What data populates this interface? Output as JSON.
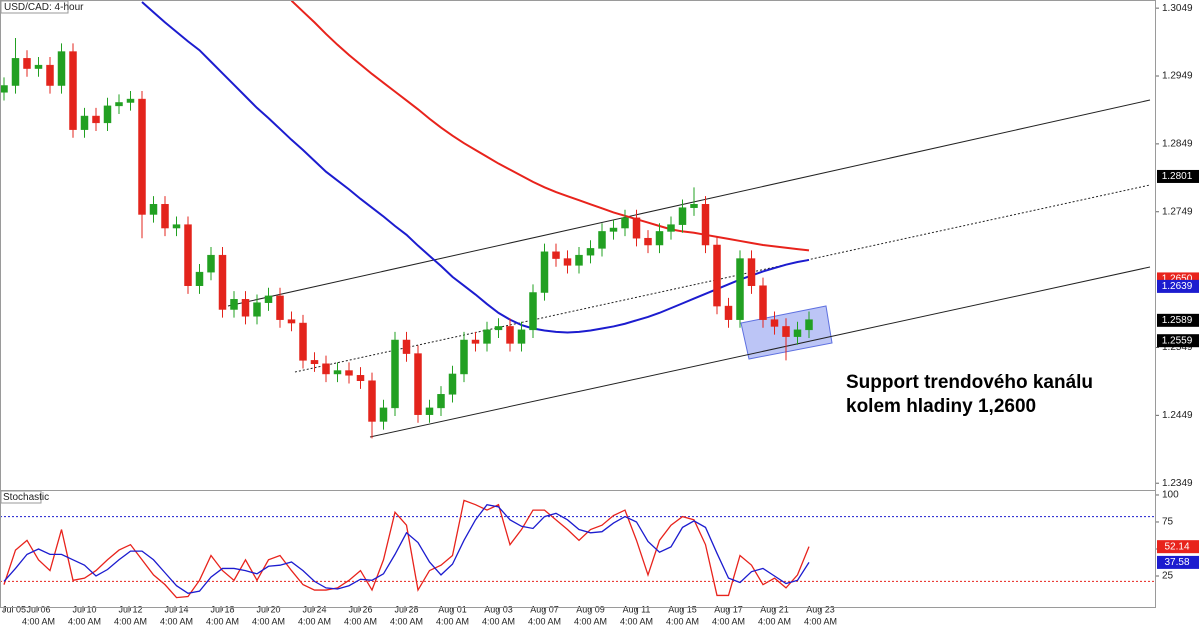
{
  "chart_data": [
    {
      "type": "candlestick",
      "title": "USD/CAD: 4-hour",
      "categories": [
        "Jul 05",
        null,
        null,
        "Jul 06",
        null,
        null,
        null,
        "Jul 10",
        null,
        null,
        null,
        "Jul 12",
        null,
        null,
        null,
        "Jul 14",
        null,
        null,
        null,
        "Jul 18",
        null,
        null,
        null,
        "Jul 20",
        null,
        null,
        null,
        "Jul 24",
        null,
        null,
        null,
        "Jul 26",
        null,
        null,
        null,
        "Jul 28",
        null,
        null,
        null,
        "Aug 01",
        null,
        null,
        null,
        "Aug 03",
        null,
        null,
        null,
        "Aug 07",
        null,
        null,
        null,
        "Aug 09",
        null,
        null,
        null,
        "Aug 11",
        null,
        null,
        null,
        "Aug 15",
        null,
        null,
        null,
        "Aug 17",
        null,
        null,
        null,
        "Aug 21",
        null,
        null,
        null,
        "Aug 23"
      ],
      "time_label": "4:00 AM",
      "open": [
        1.2925,
        1.2935,
        1.2975,
        1.296,
        1.2965,
        1.2935,
        1.2985,
        1.287,
        1.289,
        1.288,
        1.2905,
        1.291,
        1.2915,
        1.2745,
        1.276,
        1.2725,
        1.273,
        1.264,
        1.266,
        1.2685,
        1.2605,
        1.262,
        1.2595,
        1.2615,
        1.2625,
        1.259,
        1.2585,
        1.253,
        1.2525,
        1.251,
        1.2515,
        1.2508,
        1.25,
        1.244,
        1.246,
        1.256,
        1.254,
        1.245,
        1.246,
        1.248,
        1.251,
        1.256,
        1.2555,
        1.2575,
        1.258,
        1.2555,
        1.2575,
        1.263,
        1.269,
        1.268,
        1.267,
        1.2685,
        1.2695,
        1.272,
        1.2725,
        1.274,
        1.271,
        1.27,
        1.272,
        1.273,
        1.2755,
        1.276,
        1.27,
        1.261,
        1.259,
        1.268,
        1.264,
        1.259,
        1.258,
        1.2565,
        1.2575,
        null
      ],
      "high": [
        1.2947,
        1.3005,
        1.2987,
        1.2977,
        1.2977,
        1.2997,
        1.2997,
        1.2902,
        1.2902,
        1.2917,
        1.2922,
        1.2927,
        1.2927,
        1.2772,
        1.2772,
        1.2742,
        1.2742,
        1.2672,
        1.2697,
        1.2697,
        1.2632,
        1.2632,
        1.2627,
        1.2637,
        1.2637,
        1.2602,
        1.2597,
        1.2542,
        1.2537,
        1.2527,
        1.2527,
        1.252,
        1.2512,
        1.2472,
        1.2572,
        1.2572,
        1.2552,
        1.2472,
        1.2492,
        1.2522,
        1.2572,
        1.2572,
        1.2587,
        1.2592,
        1.2592,
        1.2587,
        1.2642,
        1.2702,
        1.2702,
        1.2692,
        1.2697,
        1.2707,
        1.2732,
        1.2737,
        1.2752,
        1.2752,
        1.2722,
        1.2732,
        1.2742,
        1.2767,
        1.2785,
        1.2772,
        1.2712,
        1.2622,
        1.2692,
        1.2692,
        1.2652,
        1.2602,
        1.2592,
        1.2587,
        1.2602,
        null
      ],
      "low": [
        1.2913,
        1.2923,
        1.2948,
        1.2948,
        1.2923,
        1.2923,
        1.2858,
        1.2858,
        1.2868,
        1.2868,
        1.2893,
        1.2898,
        1.271,
        1.2733,
        1.2713,
        1.2713,
        1.2628,
        1.2628,
        1.2648,
        1.2593,
        1.2593,
        1.2583,
        1.2583,
        1.2603,
        1.2578,
        1.2573,
        1.2518,
        1.2513,
        1.2498,
        1.2498,
        1.2496,
        1.2488,
        1.2415,
        1.2428,
        1.2448,
        1.2528,
        1.2438,
        1.2438,
        1.2448,
        1.2468,
        1.2498,
        1.2543,
        1.2543,
        1.2563,
        1.2543,
        1.2543,
        1.2563,
        1.2618,
        1.2668,
        1.2658,
        1.2658,
        1.2673,
        1.2683,
        1.2708,
        1.2713,
        1.2698,
        1.2688,
        1.2688,
        1.2708,
        1.2718,
        1.2743,
        1.2688,
        1.2598,
        1.2578,
        1.2578,
        1.2628,
        1.2578,
        1.2568,
        1.253,
        1.2553,
        1.2563,
        null
      ],
      "close": [
        1.2935,
        1.2975,
        1.296,
        1.2965,
        1.2935,
        1.2985,
        1.287,
        1.289,
        1.288,
        1.2905,
        1.291,
        1.2915,
        1.2745,
        1.276,
        1.2725,
        1.273,
        1.264,
        1.266,
        1.2685,
        1.2605,
        1.262,
        1.2595,
        1.2615,
        1.2625,
        1.259,
        1.2585,
        1.253,
        1.2525,
        1.251,
        1.2515,
        1.2508,
        1.25,
        1.244,
        1.246,
        1.256,
        1.254,
        1.245,
        1.246,
        1.248,
        1.251,
        1.256,
        1.2555,
        1.2575,
        1.258,
        1.2555,
        1.2575,
        1.263,
        1.269,
        1.268,
        1.267,
        1.2685,
        1.2695,
        1.272,
        1.2725,
        1.274,
        1.271,
        1.27,
        1.272,
        1.273,
        1.2755,
        1.276,
        1.27,
        1.261,
        1.259,
        1.268,
        1.264,
        1.259,
        1.258,
        1.2565,
        1.2575,
        1.259,
        null
      ],
      "up_color": "#22a022",
      "down_color": "#e3241c",
      "overlays": [
        {
          "color": "#1c1ccf",
          "values": [
            null,
            null,
            null,
            null,
            null,
            null,
            null,
            null,
            null,
            null,
            null,
            null,
            1.3058,
            1.3043,
            1.3028,
            1.3014,
            1.3,
            1.2987,
            1.297,
            1.2953,
            1.2936,
            1.2919,
            1.2902,
            1.2887,
            1.2871,
            1.2855,
            1.284,
            1.2824,
            1.2808,
            1.2795,
            1.2782,
            1.2768,
            1.2755,
            1.2742,
            1.2728,
            1.2715,
            1.2699,
            1.2684,
            1.2669,
            1.2653,
            1.264,
            1.2627,
            1.2613,
            1.26,
            1.259,
            1.2582,
            1.2577,
            1.2574,
            1.2572,
            1.2571,
            1.2572,
            1.2574,
            1.2577,
            1.258,
            1.2584,
            1.2589,
            1.2594,
            1.26,
            1.2607,
            1.2614,
            1.2621,
            1.2628,
            1.2635,
            1.2642,
            1.2649,
            1.2655,
            1.2661,
            1.2666,
            1.2671,
            1.2675,
            1.2678,
            null
          ]
        },
        {
          "color": "#e8231c",
          "values": [
            null,
            null,
            null,
            null,
            null,
            null,
            null,
            null,
            null,
            null,
            null,
            null,
            null,
            null,
            null,
            null,
            null,
            null,
            null,
            null,
            null,
            null,
            null,
            null,
            null,
            1.306,
            1.3044,
            1.3028,
            1.3011,
            1.2995,
            1.298,
            1.2966,
            1.2952,
            1.2939,
            1.2926,
            1.2913,
            1.29,
            1.2886,
            1.2873,
            1.2861,
            1.285,
            1.284,
            1.283,
            1.282,
            1.2811,
            1.2802,
            1.2793,
            1.2785,
            1.2778,
            1.2772,
            1.2766,
            1.276,
            1.2754,
            1.2748,
            1.2743,
            1.2738,
            1.2733,
            1.2728,
            1.2723,
            1.272,
            1.2718,
            1.2715,
            1.2712,
            1.2709,
            1.2706,
            1.2703,
            1.27,
            1.2698,
            1.2696,
            1.2694,
            1.2692,
            null
          ]
        }
      ],
      "ylim": [
        1.2339,
        1.3061
      ],
      "yticks": [
        1.3049,
        1.2949,
        1.2849,
        1.2749,
        1.2549,
        1.2449,
        1.2349
      ],
      "markers": [
        {
          "value": 1.2801,
          "color": "#000000"
        },
        {
          "value": 1.265,
          "label": "1.2650",
          "color": "#e8231c"
        },
        {
          "value": 1.2639,
          "color": "#1c1ccf"
        },
        {
          "value": 1.2589,
          "color": "#000000"
        },
        {
          "value": 1.2559,
          "color": "#000000"
        }
      ],
      "annotation": [
        "Support trendového kanálu",
        "kolem hladiny 1,2600"
      ]
    },
    {
      "type": "line",
      "title": "Stochastic",
      "series": [
        {
          "color": "#e8231c",
          "values": [
            17,
            49,
            58,
            40,
            30,
            68,
            21,
            23,
            30,
            40,
            49,
            54,
            40,
            26,
            17,
            5,
            6,
            21,
            44,
            30,
            21,
            40,
            21,
            40,
            44,
            30,
            17,
            12,
            12,
            14,
            21,
            30,
            12,
            40,
            84,
            72,
            12,
            30,
            35,
            44,
            95,
            91,
            86,
            91,
            54,
            68,
            86,
            86,
            77,
            68,
            58,
            68,
            72,
            81,
            86,
            58,
            26,
            58,
            72,
            80,
            77,
            54,
            7,
            7,
            44,
            35,
            17,
            23,
            14,
            26,
            52.14
          ]
        },
        {
          "color": "#1c1ccf",
          "values": [
            20,
            32,
            45,
            50,
            45,
            45,
            40,
            35,
            25,
            31,
            40,
            48,
            48,
            40,
            28,
            16,
            9,
            11,
            24,
            32,
            32,
            30,
            27,
            34,
            35,
            38,
            30,
            20,
            14,
            13,
            16,
            22,
            21,
            27,
            45,
            65,
            56,
            38,
            26,
            36,
            58,
            77,
            91,
            89,
            77,
            71,
            69,
            80,
            83,
            77,
            68,
            65,
            66,
            74,
            80,
            75,
            57,
            47,
            52,
            70,
            76,
            70,
            46,
            23,
            19,
            29,
            32,
            25,
            18,
            21,
            37.58
          ]
        }
      ],
      "ylim": [
        -3.7,
        104.6
      ],
      "yticks": [
        100,
        75,
        50,
        25
      ],
      "levels": [
        {
          "value": 80,
          "color": "#1c1ccf"
        },
        {
          "value": 20,
          "color": "#e8231c"
        }
      ],
      "markers": [
        {
          "value": 52.14,
          "color": "#e8231c"
        },
        {
          "value": 37.58,
          "color": "#1c1ccf"
        }
      ]
    }
  ]
}
